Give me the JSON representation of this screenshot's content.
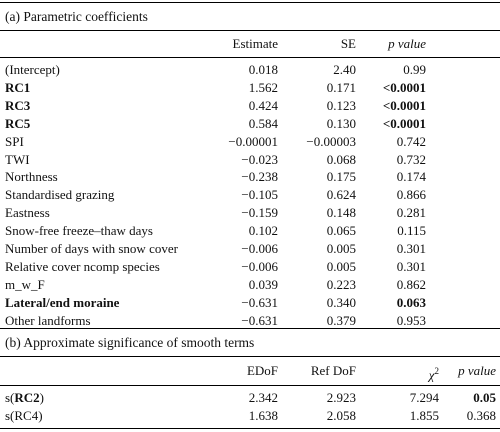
{
  "section_a": {
    "title": "(a) Parametric coefficients",
    "headers": {
      "estimate": "Estimate",
      "se": "SE",
      "p_value": "p value"
    },
    "rows": [
      {
        "term": "(Intercept)",
        "estimate": "0.018",
        "se": "2.40",
        "p": "0.99",
        "bold_term": false,
        "bold_p": false
      },
      {
        "term": "RC1",
        "estimate": "1.562",
        "se": "0.171",
        "p": "<0.0001",
        "bold_term": true,
        "bold_p": true
      },
      {
        "term": "RC3",
        "estimate": "0.424",
        "se": "0.123",
        "p": "<0.0001",
        "bold_term": true,
        "bold_p": true
      },
      {
        "term": "RC5",
        "estimate": "0.584",
        "se": "0.130",
        "p": "<0.0001",
        "bold_term": true,
        "bold_p": true
      },
      {
        "term": "SPI",
        "estimate": "−0.00001",
        "se": "−0.00003",
        "p": "0.742",
        "bold_term": false,
        "bold_p": false
      },
      {
        "term": "TWI",
        "estimate": "−0.023",
        "se": "0.068",
        "p": "0.732",
        "bold_term": false,
        "bold_p": false
      },
      {
        "term": "Northness",
        "estimate": "−0.238",
        "se": "0.175",
        "p": "0.174",
        "bold_term": false,
        "bold_p": false
      },
      {
        "term": "Standardised grazing",
        "estimate": "−0.105",
        "se": "0.624",
        "p": "0.866",
        "bold_term": false,
        "bold_p": false
      },
      {
        "term": "Eastness",
        "estimate": "−0.159",
        "se": "0.148",
        "p": "0.281",
        "bold_term": false,
        "bold_p": false
      },
      {
        "term": "Snow-free freeze–thaw days",
        "estimate": "0.102",
        "se": "0.065",
        "p": "0.115",
        "bold_term": false,
        "bold_p": false
      },
      {
        "term": "Number of days with snow cover",
        "estimate": "−0.006",
        "se": "0.005",
        "p": "0.301",
        "bold_term": false,
        "bold_p": false
      },
      {
        "term": "Relative cover ncomp species",
        "estimate": "−0.006",
        "se": "0.005",
        "p": "0.301",
        "bold_term": false,
        "bold_p": false
      },
      {
        "term": "m_w_F",
        "estimate": "0.039",
        "se": "0.223",
        "p": "0.862",
        "bold_term": false,
        "bold_p": false
      },
      {
        "term": "Lateral/end moraine",
        "estimate": "−0.631",
        "se": "0.340",
        "p": "0.063",
        "bold_term": true,
        "bold_p": true
      },
      {
        "term": "Other landforms",
        "estimate": "−0.631",
        "se": "0.379",
        "p": "0.953",
        "bold_term": false,
        "bold_p": false
      }
    ]
  },
  "section_b": {
    "title": "(b) Approximate significance of smooth terms",
    "headers": {
      "edof": "EDoF",
      "ref_dof": "Ref DoF",
      "chi_base": "χ",
      "chi_sup": "2",
      "p_value": "p value"
    },
    "rows": [
      {
        "term": "s(RC2)",
        "term_base": "s(",
        "term_bold": "RC2",
        "term_end": ")",
        "edof": "2.342",
        "ref_dof": "2.923",
        "chi2": "7.294",
        "p": "0.05",
        "bold_term": true,
        "bold_p": true
      },
      {
        "term": "s(RC4)",
        "term_base": "s(RC4)",
        "term_bold": "",
        "term_end": "",
        "edof": "1.638",
        "ref_dof": "2.058",
        "chi2": "1.855",
        "p": "0.368",
        "bold_term": false,
        "bold_p": false
      }
    ]
  }
}
